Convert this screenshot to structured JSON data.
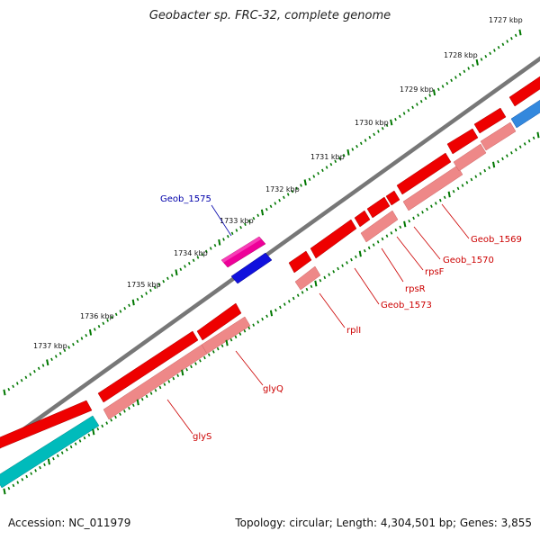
{
  "title": "Geobacter sp. FRC-32, complete genome",
  "footer": {
    "accession": "Accession: NC_011979",
    "summary": "Topology: circular; Length: 4,304,501 bp; Genes: 3,855"
  },
  "colors": {
    "backbone": "#777777",
    "strand_forward": "#ee0000",
    "strand_forward_shadow": "#ee8888",
    "strand_reverse_pink": "#ee0099",
    "strand_reverse_blue": "#1111dd",
    "cyan": "#00bbbb",
    "label_red": "#cc0000",
    "label_blue": "#0000aa",
    "dots": "#007700"
  },
  "scale_ticks": [
    "1727 kbp",
    "1728 kbp",
    "1729 kbp",
    "1730 kbp",
    "1731 kbp",
    "1732 kbp",
    "1733 kbp",
    "1734 kbp",
    "1735 kbp",
    "1736 kbp",
    "1737 kbp"
  ],
  "gene_labels": {
    "geob_1575": "Geob_1575",
    "geob_1569": "Geob_1569",
    "geob_1570": "Geob_1570",
    "rpsF": "rpsF",
    "rpsR": "rpsR",
    "geob_1573": "Geob_1573",
    "rplI": "rplI",
    "glyQ": "glyQ",
    "glyS": "glyS"
  }
}
